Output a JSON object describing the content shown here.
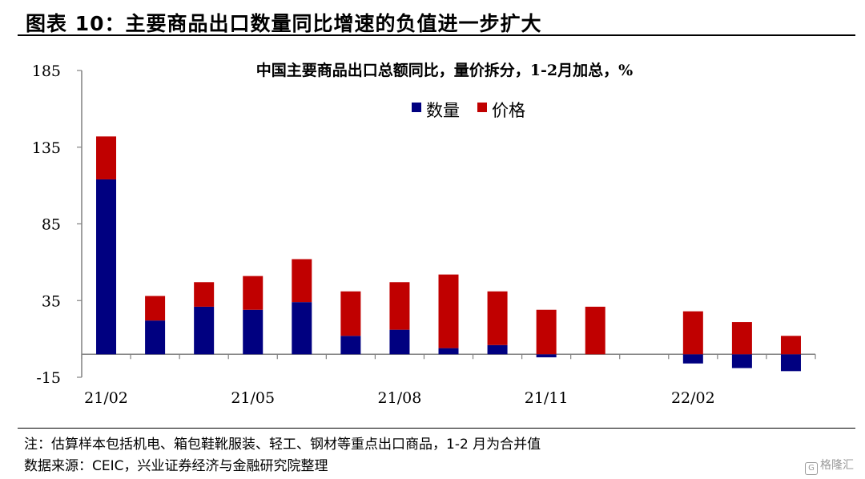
{
  "figure": {
    "title": "图表 10：主要商品出口数量同比增速的负值进一步扩大",
    "note": "注：估算样本包括机电、箱包鞋靴服装、轻工、钢材等重点出口商品，1-2 月为合并值",
    "source": "数据来源：CEIC，兴业证券经济与金融研究院整理",
    "watermark": "格隆汇"
  },
  "colors": {
    "quantity": "#000080",
    "price": "#c00000",
    "axis": "#808080"
  },
  "chart_data": {
    "type": "bar",
    "stacked": true,
    "title": "中国主要商品出口总额同比，量价拆分，1-2月加总，%",
    "legend_position": "top-center",
    "grid": false,
    "ylim": [
      -15,
      185
    ],
    "yticks": [
      "185",
      "135",
      "85",
      "35",
      "-15"
    ],
    "ytick_values": [
      185,
      135,
      85,
      35,
      -15
    ],
    "x_tick_labels": [
      {
        "label": "21/02",
        "index": 0
      },
      {
        "label": "21/05",
        "index": 3
      },
      {
        "label": "21/08",
        "index": 6
      },
      {
        "label": "21/11",
        "index": 9
      },
      {
        "label": "22/02",
        "index": 12
      }
    ],
    "categories": [
      "21/02",
      "21/03",
      "21/04",
      "21/05",
      "21/06",
      "21/07",
      "21/08",
      "21/09",
      "21/10",
      "21/11",
      "21/12",
      "22/01",
      "22/02",
      "22/03",
      "22/04"
    ],
    "series": [
      {
        "name": "数量",
        "color": "#000080",
        "values": [
          114,
          22,
          31,
          29,
          34,
          12,
          16,
          4,
          6,
          -2,
          0,
          null,
          -6,
          -9,
          -11
        ]
      },
      {
        "name": "价格",
        "color": "#c00000",
        "values": [
          28,
          16,
          16,
          22,
          28,
          29,
          31,
          48,
          35,
          29,
          31,
          null,
          28,
          21,
          12
        ]
      }
    ]
  }
}
